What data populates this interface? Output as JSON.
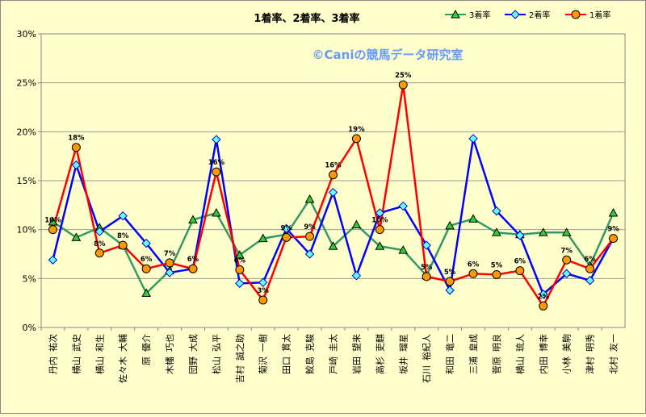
{
  "chart_data": {
    "type": "line",
    "title": "1着率、2着率、3着率",
    "watermark": "©Caniの競馬データ研究室",
    "categories": [
      "丹内 祐次",
      "横山 武史",
      "横山 和生",
      "佐々木 大輔",
      "原 優介",
      "木幡 巧也",
      "団野 大成",
      "松山 弘平",
      "吉村 誠之助",
      "菊沢 一樹",
      "田口 貫太",
      "鮫島 克駿",
      "戸崎 圭太",
      "岩田 望来",
      "高杉 吏麒",
      "坂井 瑠星",
      "石川 裕紀人",
      "和田 竜二",
      "三浦 皇成",
      "菅原 明良",
      "横山 琉人",
      "内田 博幸",
      "小林 美駒",
      "津村 明秀",
      "北村 友一"
    ],
    "ylim": [
      0,
      30
    ],
    "yticks": [
      "0%",
      "5%",
      "10%",
      "15%",
      "20%",
      "25%",
      "30%"
    ],
    "grid": true,
    "legend": "top-right",
    "series": [
      {
        "name": "3着率",
        "color": "#339966",
        "marker": "triangle",
        "marker_color": "#33CC33",
        "values": [
          10.8,
          9.2,
          10.2,
          8.4,
          3.5,
          5.8,
          11.0,
          11.7,
          7.4,
          9.1,
          9.5,
          13.1,
          8.3,
          10.5,
          8.3,
          7.9,
          5.3,
          10.4,
          11.1,
          9.7,
          9.5,
          9.7,
          9.7,
          6.3,
          11.7
        ]
      },
      {
        "name": "2着率",
        "color": "#0000FF",
        "marker": "diamond",
        "marker_color": "#66FFFF",
        "values": [
          6.9,
          16.6,
          9.8,
          11.4,
          8.6,
          5.6,
          6.0,
          19.2,
          4.5,
          4.6,
          10.1,
          7.5,
          13.8,
          5.3,
          11.7,
          12.4,
          8.4,
          3.8,
          19.3,
          11.9,
          9.4,
          3.4,
          5.5,
          4.8,
          9.1
        ]
      },
      {
        "name": "1着率",
        "color": "#FF0000",
        "marker": "circle",
        "marker_color": "#FF9900",
        "values": [
          10.0,
          18.4,
          7.6,
          8.4,
          6.0,
          6.6,
          6.0,
          15.9,
          5.9,
          2.8,
          9.2,
          9.3,
          15.6,
          19.3,
          10.0,
          24.8,
          5.2,
          4.7,
          5.5,
          5.4,
          5.8,
          2.2,
          6.9,
          6.0,
          9.1
        ],
        "labels": [
          "10%",
          "18%",
          "8%",
          "8%",
          "6%",
          "7%",
          "6%",
          "16%",
          "6%",
          "3%",
          "9%",
          "9%",
          "16%",
          "19%",
          "10%",
          "25%",
          "5%",
          "5%",
          "6%",
          "5%",
          "6%",
          "2%",
          "7%",
          "6%",
          "9%"
        ]
      }
    ]
  }
}
